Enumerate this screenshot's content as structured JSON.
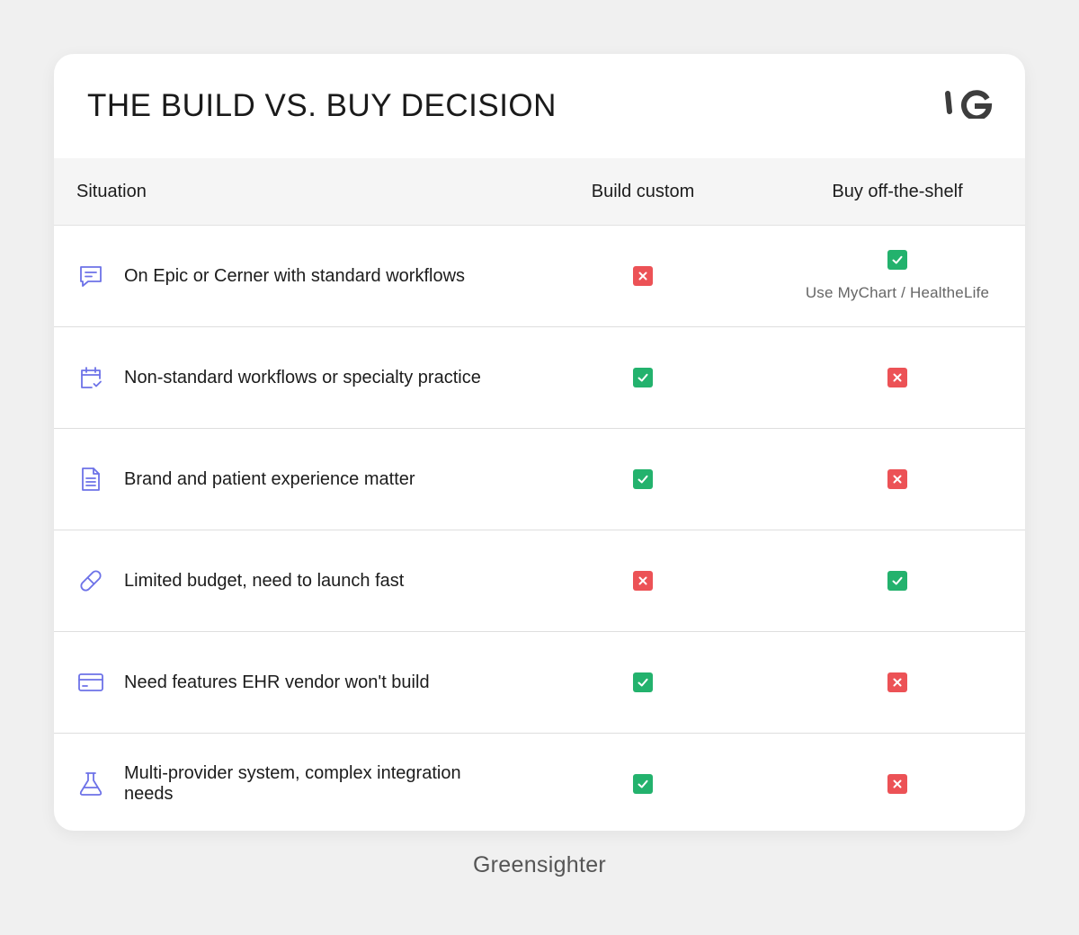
{
  "title": "THE BUILD VS. BUY DECISION",
  "logo": {
    "icon": "greensighter-logo-icon"
  },
  "table": {
    "columns": {
      "situation": "Situation",
      "build": "Build custom",
      "buy": "Buy off-the-shelf"
    },
    "rows": [
      {
        "icon": "chat-icon",
        "label": "On Epic or Cerner with standard workflows",
        "build": "no",
        "buy": "yes",
        "buy_note": "Use MyChart / HealtheLife"
      },
      {
        "icon": "calendar-check-icon",
        "label": "Non-standard workflows or specialty practice",
        "build": "yes",
        "buy": "no"
      },
      {
        "icon": "document-icon",
        "label": "Brand and patient experience matter",
        "build": "yes",
        "buy": "no"
      },
      {
        "icon": "pill-icon",
        "label": "Limited budget, need to launch fast",
        "build": "no",
        "buy": "yes"
      },
      {
        "icon": "credit-card-icon",
        "label": "Need features EHR vendor won't build",
        "build": "yes",
        "buy": "no"
      },
      {
        "icon": "flask-icon",
        "label": "Multi-provider system, complex integration needs",
        "build": "yes",
        "buy": "no"
      }
    ]
  },
  "colors": {
    "yes": "#23b26d",
    "no": "#ec5256",
    "icon_accent": "#6d72e8"
  },
  "footer": "Greensighter"
}
